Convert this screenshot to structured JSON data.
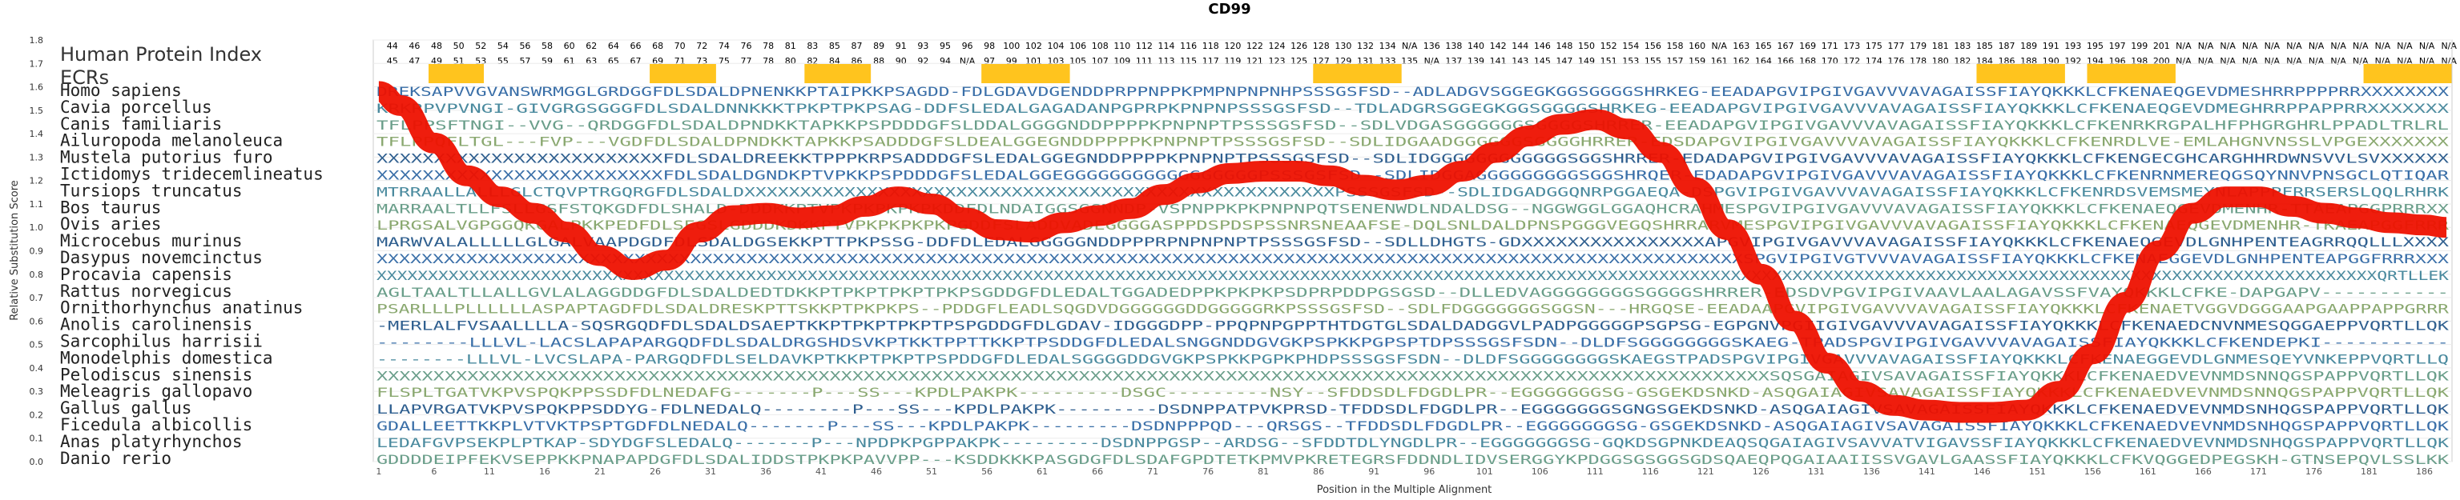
{
  "chart_data": {
    "type": "line",
    "title": "CD99",
    "xlabel": "Position in the Multiple Alignment",
    "ylabel": "Relative Substitution Score",
    "ylim": [
      0.0,
      1.8
    ],
    "yticks": [
      "0.0",
      "0.1",
      "0.2",
      "0.3",
      "0.4",
      "0.5",
      "0.6",
      "0.7",
      "0.8",
      "0.9",
      "1.0",
      "1.1",
      "1.2",
      "1.3",
      "1.4",
      "1.5",
      "1.6",
      "1.7",
      "1.8"
    ],
    "xticks": [
      "1",
      "6",
      "11",
      "16",
      "21",
      "26",
      "31",
      "36",
      "41",
      "46",
      "51",
      "56",
      "61",
      "66",
      "71",
      "76",
      "81",
      "86",
      "91",
      "96",
      "101",
      "106",
      "111",
      "116",
      "121",
      "126",
      "131",
      "136",
      "141",
      "146",
      "151",
      "156",
      "161",
      "166",
      "171",
      "176",
      "181",
      "186"
    ],
    "legend_title": "Human Protein Index",
    "ecr_label": "ECRs",
    "ecr_regions": [
      [
        6,
        10
      ],
      [
        26,
        31
      ],
      [
        40,
        45
      ],
      [
        56,
        63
      ],
      [
        86,
        93
      ],
      [
        146,
        153
      ],
      [
        156,
        163
      ],
      [
        181,
        188
      ]
    ],
    "index_row_top": [
      "44",
      "46",
      "48",
      "50",
      "52",
      "54",
      "56",
      "58",
      "60",
      "62",
      "64",
      "66",
      "68",
      "70",
      "72",
      "74",
      "76",
      "78",
      "81",
      "83",
      "85",
      "87",
      "89",
      "91",
      "93",
      "95",
      "96",
      "98",
      "100",
      "102",
      "104",
      "106",
      "108",
      "110",
      "112",
      "114",
      "116",
      "118",
      "120",
      "122",
      "124",
      "126",
      "128",
      "130",
      "132",
      "134",
      "N/A",
      "136",
      "138",
      "140",
      "142",
      "144",
      "146",
      "148",
      "150",
      "152",
      "154",
      "156",
      "158",
      "160",
      "N/A",
      "163",
      "165",
      "167",
      "169",
      "171",
      "173",
      "175",
      "177",
      "179",
      "181",
      "183",
      "185",
      "187",
      "189",
      "191",
      "193",
      "195",
      "197",
      "199",
      "201",
      "N/A",
      "N/A",
      "N/A",
      "N/A",
      "N/A",
      "N/A",
      "N/A",
      "N/A",
      "N/A",
      "N/A",
      "N/A",
      "N/A",
      "N/A"
    ],
    "index_row_bottom": [
      "45",
      "47",
      "49",
      "51",
      "53",
      "55",
      "57",
      "59",
      "61",
      "63",
      "65",
      "67",
      "69",
      "71",
      "73",
      "75",
      "77",
      "78",
      "80",
      "82",
      "84",
      "86",
      "88",
      "90",
      "92",
      "94",
      "N/A",
      "97",
      "99",
      "101",
      "103",
      "105",
      "107",
      "109",
      "111",
      "113",
      "115",
      "117",
      "119",
      "121",
      "123",
      "125",
      "127",
      "129",
      "131",
      "133",
      "135",
      "N/A",
      "137",
      "139",
      "141",
      "143",
      "145",
      "147",
      "149",
      "151",
      "153",
      "155",
      "157",
      "159",
      "161",
      "162",
      "164",
      "166",
      "168",
      "170",
      "172",
      "174",
      "176",
      "178",
      "180",
      "182",
      "184",
      "186",
      "188",
      "190",
      "192",
      "194",
      "196",
      "198",
      "200",
      "N/A",
      "N/A",
      "N/A",
      "N/A",
      "N/A",
      "N/A",
      "N/A",
      "N/A",
      "N/A",
      "N/A",
      "N/A",
      "N/A",
      "N/A"
    ],
    "species": [
      "Homo sapiens",
      "Cavia porcellus",
      "Canis familiaris",
      "Ailuropoda melanoleuca",
      "Mustela putorius furo",
      "Ictidomys tridecemlineatus",
      "Tursiops truncatus",
      "Bos taurus",
      "Ovis aries",
      "Microcebus murinus",
      "Dasypus novemcinctus",
      "Procavia capensis",
      "Rattus norvegicus",
      "Ornithorhynchus anatinus",
      "Anolis carolinensis",
      "Sarcophilus harrisii",
      "Monodelphis domestica",
      "Pelodiscus sinensis",
      "Meleagris gallopavo",
      "Gallus gallus",
      "Ficedula albicollis",
      "Anas platyrhynchos",
      "Danio rerio"
    ],
    "sequences": [
      "DREKSAPVVGVANSWRMGGLGRDGGFDLSDALDPNENKKPTAIPKKPSAGDD-FDLGDAVDGENDDPRPPNPPKPMPNPNPNHPSSSGSFSD--ADLADGVSGGEGKGGSGGGGSHRKEG-EEADAPGVIPGIVGAVVVAVAGAISSFIAYQKKKLCFKENAEQGEVDMESHRRPPPPRRXXXXXXXX",
      "KRKRPVPVNGI-GIVGRGSGGGFDLSDALDNNKKKTPKPTPKPSAG-DDFSLEDALGAGADANPGPRPKPNPNPSSSGSFSD--TDLADGRSGGEGKGGSGGGGSHRKEG-EEADAPGVIPGIVGAVVVAVAGAISSFIAYQKKKLCFKENAEQGEVDMEGHRRPPAPPRRXXXXXXX",
      "TFLPPSFTNGI--VVG--QRDGGFDLSDALDPNDKKTAPKKPSPDDDGFSLDDALGGGGNDDPPPPKPNPNPTPSSSGSFSD--SDLVDGASGGGGGGSGGGGSHRRER-EEADAPGVIPGIVGAVVVAVAGAISSFIAYQKKKLCFKENRKRGPALHFPHGRGHRLPPADLTRLRL",
      "TFLPPQFLTGL---FVP---VGDFDLSDALDPNDKKTAPKKPSADDDGFSLDEALGGEGNDDPPPPKPNPNPTPSSSGSFSD--SDLIDGAADGGGGGGSGGGGHRRER-EDSDAPGVIPGIVGAVVVAVAGAISSFIAYQKKKLCFKENRDLVE-EMLAHGNVNSSLVPGEXXXXXXX",
      "XXXXXXXXXXXXXXXXXXXXXXXXXFDLSDALDREEKKTPPPKRPSADDDGFSLEDALGGEGNDDPPPPKPNPNPTPSSSGSFSD--SDLIDGGGGGGGGGGGGSGGSHRRER-EDADAPGVIPGIVGAVVVAVAGAISSFIAYQKKKLCFKENGECGHCARGHHRDWNSVVLSVXXXXXX",
      "XXXXXXXXXXXXXXXXXXXXXXXXXFDLSDALDGNDKPTVPKKPSPDDDGFSLEDALGGEGGGGGGGGGGGGGGGGGPSSSGSFSD--SDLIDGGAGGGGGGGGGSGGSHRQER-EDADAPGVIPGIVGAVVVAVAGAISSFIAYQKKKLCFKENRNMEREQGSQYNNVPNSGCLQTIQAR",
      "MTRRAALLALLLGLCTQVPTRGQRGFDLSDALDXXXXXXXXXXXXXXXXXXXXXXXXXXXXXXXXXXXXXXXXXXXXXXXXXXXXXPSSSGSFSD--SDLIDGADGGQNRPGGAEQA-DSPGVIPGIVGAVVVAVAGAISSFIAYQKKKLCFKENRDSVEMSMEYNLAPPPFRRSERSLQQLRHRK",
      "MARRAALTLLFSLLGSFSTQKGDFDLSHALD-DDDKKPTVPKPKPKPKPKDDFDLNDAIGGSGGNNDP-VSPNPPKPKPNPNPQTSENENWDLNDALDSG--NGGWGGLGGAQHCRAHMESPGVIPGIVGAVVVAVAGAISSFIAYQKKKLCFKENAEQGEVDMENHR-TTAEAPGGPRRRXX",
      "LPRGSALVGPGGQKGALPKKPEDFDLSEGSLGDDDKDKKPTVPKPKPKPKPGDDFSLADDVADEGGGGASPPDSPDSPSSNRSNEAAFSE-DQLSNLDALDPNSPGGGVEGQSHRRARVMESPGVIPGIVGAVVVAVAGAISSFIAYQKKKLCFKENAEQGEVDMENHR-TKAEAPGGFRRR",
      "MARWVALALLLLLGLGALVAAPDGDFDLSDALDGSEKKPTTPKPSSG-DDFDLEDALGGGGGNDDPPPRPNPNPNPTPSSSGSFSD--SDLLDHGTS-GDXXXXXXXXXXXXXXXXAPGVIPGIVGAVVVAVAGAISSFIAYQKKKLCFKENAEQGEVDLGNHPENTEAGRRQQLLLXXXX",
      "XXXXXXXXXXXXXXXXXXXXXXXXXXXXXXXXXXXXXXXXXXXXXXXXXXXXXXXXXXXXXXXXXXXXXXXXXXXXXXXXXXXXXXXXXXXXXXXXXXXXXXXXXXXXXXXXXXXXXXXXXXSPGVIPGIVGTVVVAVAGAISSFIAYQKKKLCFKENAEGGEVDLGNHPENTEAPGGFRRRXXX",
      "XXXXXXXXXXXXXXXXXXXXXXXXXXXXXXXXXXXXXXXXXXXXXXXXXXXXXXXXXXXXXXXXXXXXXXXXXXXXXXXXXXXXXXXXXXXXXXXXXXXXXXXXXXXXXXXXXXXXXXXXXXXXXXXXXXXXXXXXXXXXXXXXXXXXXXXXXXXXXXXXXXXXXXXXXXXXXXXXXXXXXXXXXXXXXXXXXXXQRTLLEK",
      "AGLTAALTLLALLGVLALAGGDDGFDLSDALDEDTDKKPTPKPTPKPTPKPSGDDGFDLEDALTGGADEDPPKPKPKPSDPRPDDPGSGSD--DLLEDVAGGGGGGGGSGGGGSHRRER-EDSDVPGVIPGIVAAVLAALAGAVSSFVAYQKKKLCFKE-DAPGAPV-----------",
      "PSARLLLPLLLLLLASPAPTAGDFDLSDALDRESKPTTSKKPTPKPKPS--PDDGFLEADLSQGDVDGGGGGGDDGGGGGRKPSSSGSFSD--SDLFDGGGGGGGSGGSN---HRGQSE-EEADAAPGVIPGIVGAVVVAVAGAISSFIAYQKKKLCFKENAETVGGVDGGGAAPGAAPPAPPGRRR",
      "-MERLALFVSAALLLLA-SQSRGQDFDLSDALDSAEPTKKPTPKPTPKPTPSPGDDGFDLGDAV-IDGGGDPP-PPQPNPGPPTHTDGTGLSDALDADGGVLPADPGGGGGPSGPSG-EGPGNVPGIIGIVGAVVVAVAGAISSFIAYQKKKLCFKENAEDCNVNMESQGGAEPPVQRTLLQK",
      "--------LLLVL-LACSLAPAPARGQDFDLSDALDRGSHDSVKPTKKTPPTTKKPTPSDDGFDLEDALSNGGNDDGVGKPSPKKPGPSPTDPSSSGSFSDN--DLDFSGGGGGGGGSKAEG-TPADSPGVIPGIVGAVVVAVAGAISSFIAYQKKKLCFKENDEPKI-----------",
      "--------LLLVL-LVCSLAPA-PARGQDFDLSELDAVKPTKKPTPKPTPSPDDGFDLEDALSGGGGDDGVGKPSPKKPGPKPHDPSSSGSFSDN--DLDFSGGGGGGGGSKAEGSTPADSPGVIPGIVGAVVVAVAGAISSFIAYQKKKLCFKENAEGGEVDLGNMESQEYVNKEPPVQRTLLQ",
      "XXXXXXXXXXXXXXXXXXXXXXXXXXXXXXXXXXXXXXXXXXXXXXXXXXXXXXXXXXXXXXXXXXXXXXXXXXXXXXXXXXXXXXXXXXXXXXXXXXXXXXXXXXXXXXXXXXXXXXXXXXXSQSGAIAGIVSAVAGAISSFIAYQKKKLCFKENAEDVEVNMDSNNQGSPAPPVQRTLLQK",
      "FLSPLTGATVKPVSPQKPPSSDFDLNEDAFG-------P---SS---KPDLPAKPK---------DSGC---------NSY--SFDDSDLFDGDLPR--EGGGGGGGSG-GSGEKDSNKD-ASQGAIAGIVSAVAGAISSFIAYQKKKLCFKENAEDVEVNMDSNNQGSPAPPVQRTLLQK",
      "LLAPVRGATVKPVSPQKPPSDDYG-FDLNEDALQ--------P---SS---KPDLPAKPK---------DSDNPPATPVKPRSD-TFDDSDLFDGDLPR--EGGGGGGGSGNGSGEKDSNKD-ASQGAIAGIVSAVAGAISSFIAYQKKKLCFKENAEDVEVNMDSNHQGSPAPPVQRTLLQK",
      "GDALLEETTKKPLVTVKTPSPTGDFDLNEDALQ-------P---SS---KPDLPAKPK---------DSDNPPPQD---QRSGS--TFDDSDLFDGDLPR--EGGGGGGGSG-GSGEKDSNKD-ASQGAIAGIVSAVAGAISSFIAYQKKKLCFKENAEDVEVNMDSNHQGSPAPPVQRTLLQK",
      "LEDAFGVPSEKPLPTKAP-SDYDGFSLEDALQ-------P---NPDPKPGPPAKPK---------DSDNPPGSP--ARDSG--SFDDTDLYNGDLPR--EGGGGGGGSG-GQKDSGPNKDEAQSQGAIAGIVSAVVATVIGAVSSFIAYQKKKLCFKENAEDVEVNMDSNHQGSPAPPVQRTLLQK",
      "GDDDDEIPFEKVSEPPKKPNAPAPDGFDLSDALIDDSTPKPKPAVVPP---KSDDKKKPASGDGFDLSDAFGPDTETKPMVPKRETEGRSFDDNDLIDVSERGGYKPDGGSGSGGSGDSQAEQPQGAIAAIISSVGAVLGAASSFIAYQKKKLCFKVQGGEDPEGSKH-GTNSEPQVLSSLKK"
    ],
    "curve_description": "smoothed human relative substitution score along alignment",
    "x": [
      1,
      3,
      6,
      9,
      12,
      15,
      18,
      21,
      24,
      27,
      30,
      33,
      36,
      39,
      42,
      45,
      48,
      51,
      54,
      57,
      60,
      63,
      66,
      69,
      72,
      75,
      78,
      81,
      84,
      87,
      90,
      93,
      96,
      99,
      102,
      105,
      108,
      111,
      114,
      117,
      120,
      123,
      126,
      129,
      132,
      135,
      138,
      141,
      144,
      147,
      150,
      153,
      156,
      159,
      162,
      165,
      168,
      171,
      174,
      177,
      180,
      183,
      186,
      188
    ],
    "y": [
      1.58,
      1.52,
      1.36,
      1.22,
      1.13,
      1.06,
      0.98,
      0.88,
      0.82,
      0.86,
      0.98,
      1.05,
      1.06,
      1.04,
      1.05,
      1.09,
      1.13,
      1.1,
      1.04,
      0.99,
      0.98,
      1.02,
      1.05,
      1.08,
      1.14,
      1.19,
      1.23,
      1.24,
      1.24,
      1.22,
      1.18,
      1.16,
      1.18,
      1.24,
      1.32,
      1.39,
      1.44,
      1.46,
      1.42,
      1.32,
      1.17,
      0.99,
      0.8,
      0.6,
      0.42,
      0.3,
      0.24,
      0.22,
      0.21,
      0.21,
      0.22,
      0.3,
      0.46,
      0.68,
      0.9,
      1.06,
      1.13,
      1.13,
      1.09,
      1.06,
      1.04,
      1.02,
      1.01,
      1.0
    ]
  }
}
